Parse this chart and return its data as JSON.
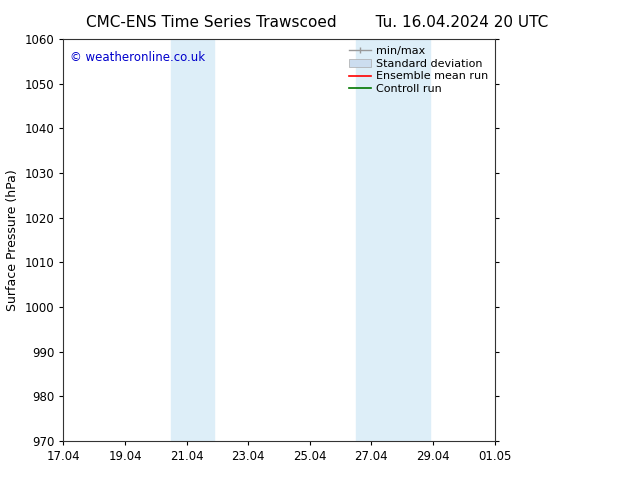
{
  "title_left": "CMC-ENS Time Series Trawscoed",
  "title_right": "Tu. 16.04.2024 20 UTC",
  "ylabel": "Surface Pressure (hPa)",
  "ylim": [
    970,
    1060
  ],
  "yticks": [
    970,
    980,
    990,
    1000,
    1010,
    1020,
    1030,
    1040,
    1050,
    1060
  ],
  "xtick_labels": [
    "17.04",
    "19.04",
    "21.04",
    "23.04",
    "25.04",
    "27.04",
    "29.04",
    "01.05"
  ],
  "xtick_positions": [
    0,
    2,
    4,
    6,
    8,
    10,
    12,
    14
  ],
  "xlim": [
    0,
    14
  ],
  "shaded_bands": [
    {
      "x_start": 3.5,
      "x_end": 4.9
    },
    {
      "x_start": 9.5,
      "x_end": 11.9
    }
  ],
  "shaded_color": "#ddeef8",
  "copyright_text": "© weatheronline.co.uk",
  "copyright_color": "#0000cc",
  "background_color": "#ffffff",
  "legend_items": [
    {
      "label": "min/max",
      "color": "#999999",
      "lw": 1.0,
      "style": "minmax"
    },
    {
      "label": "Standard deviation",
      "color": "#ccddef",
      "lw": 8,
      "style": "fill"
    },
    {
      "label": "Ensemble mean run",
      "color": "#ff0000",
      "lw": 1.2,
      "style": "line"
    },
    {
      "label": "Controll run",
      "color": "#007700",
      "lw": 1.2,
      "style": "line"
    }
  ],
  "grid_color": "#dddddd",
  "title_fontsize": 11,
  "tick_fontsize": 8.5,
  "ylabel_fontsize": 9,
  "copyright_fontsize": 8.5,
  "legend_fontsize": 8
}
